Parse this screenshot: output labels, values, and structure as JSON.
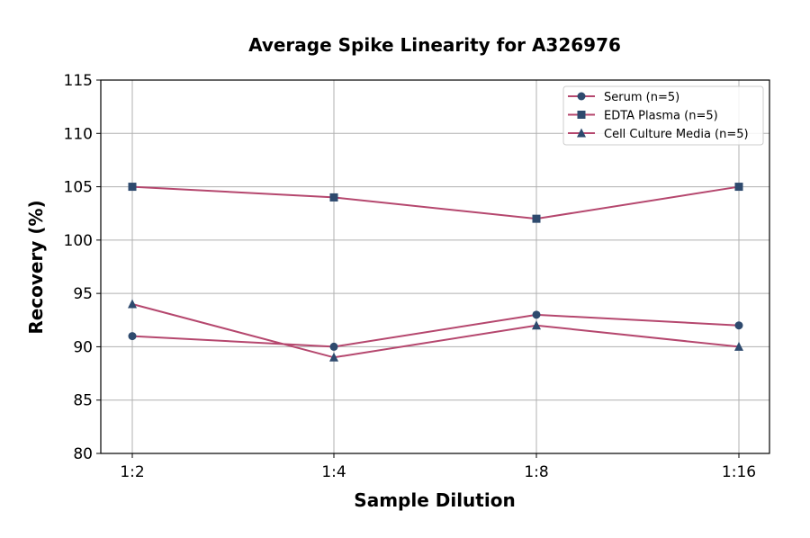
{
  "chart_data": {
    "type": "line",
    "title": "Average Spike Linearity for A326976",
    "xlabel": "Sample Dilution",
    "ylabel": "Recovery (%)",
    "categories": [
      "1:2",
      "1:4",
      "1:8",
      "1:16"
    ],
    "ylim": [
      80,
      115
    ],
    "yticks": [
      80,
      85,
      90,
      95,
      100,
      105,
      110,
      115
    ],
    "grid": true,
    "legend_position": "top-right",
    "line_color": "#b5476e",
    "marker_color": "#2e4a6e",
    "series": [
      {
        "name": "Serum (n=5)",
        "marker": "circle",
        "values": [
          91,
          90,
          93,
          92
        ]
      },
      {
        "name": "EDTA Plasma (n=5)",
        "marker": "square",
        "values": [
          105,
          104,
          102,
          105
        ]
      },
      {
        "name": "Cell Culture Media (n=5)",
        "marker": "triangle",
        "values": [
          94,
          89,
          92,
          90
        ]
      }
    ]
  }
}
